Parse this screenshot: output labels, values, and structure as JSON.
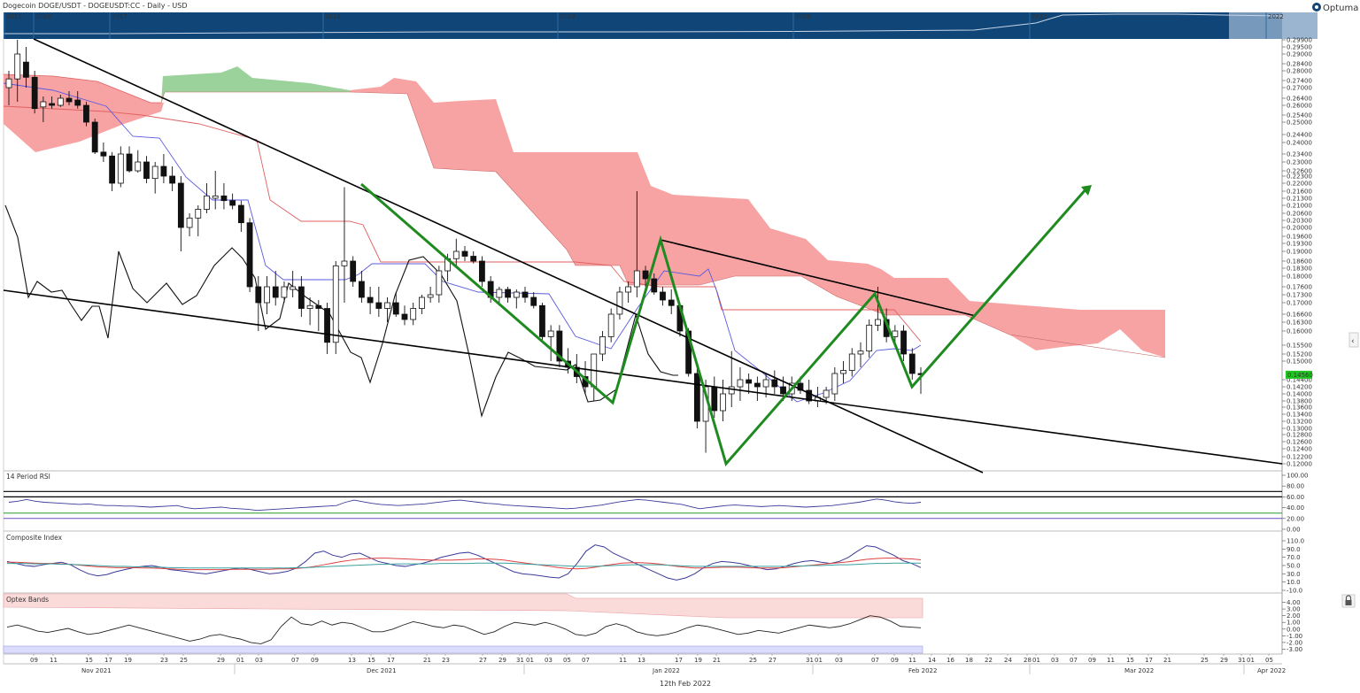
{
  "header": {
    "title": "Dogecoin DOGE/USDT - DOGEUSDT:CC - Daily - USD",
    "brand": "Optuma"
  },
  "navigator": {
    "years": [
      "2015",
      "2016",
      "2017",
      "2018",
      "2019",
      "2020",
      "2021",
      "2022"
    ]
  },
  "footer": {
    "date": "12th Feb 2022"
  },
  "colors": {
    "kumo_bear": "#f7a3a3",
    "kumo_bull": "#9bd29b",
    "pattern": "#1f8a1f",
    "tenkan": "#5a5ae0",
    "kijun": "#e06060",
    "price_badge": "#21c421",
    "navigator": "#0f4577"
  },
  "chart_data": [
    {
      "name": "price",
      "type": "candlestick",
      "price_badge": "0.14560",
      "y_ticks": [
        "0.29900",
        "0.29500",
        "0.29000",
        "0.28400",
        "0.28000",
        "0.27400",
        "0.27000",
        "0.26400",
        "0.26000",
        "0.25400",
        "0.25000",
        "0.24400",
        "0.24000",
        "0.23400",
        "0.23000",
        "0.22600",
        "0.22300",
        "0.22000",
        "0.21600",
        "0.21300",
        "0.21000",
        "0.20600",
        "0.20300",
        "0.20000",
        "0.19600",
        "0.19300",
        "0.19000",
        "0.18600",
        "0.18300",
        "0.18000",
        "0.17600",
        "0.17300",
        "0.17000",
        "0.16600",
        "0.16300",
        "0.16000",
        "0.15500",
        "0.15200",
        "0.15000",
        "0.14400",
        "0.14200",
        "0.14000",
        "0.13800",
        "0.13600",
        "0.13400",
        "0.13200",
        "0.13000",
        "0.12800",
        "0.12600",
        "0.12400",
        "0.12200",
        "0.12000"
      ],
      "ohlc_note": "approximate daily DOGE/USDT candles, Nov 2021 - Feb 12 2022",
      "pattern": "falling wedge with green zig-zag projection"
    },
    {
      "name": "rsi",
      "title": "14 Period RSI",
      "y_ticks": [
        "100.00",
        "80.00",
        "60.00",
        "40.00",
        "20.00",
        "0.00"
      ],
      "levels": [
        70,
        60,
        30,
        20
      ]
    },
    {
      "name": "composite",
      "title": "Composite Index",
      "y_ticks": [
        "110.0",
        "90.0",
        "70.0",
        "50.0",
        "30.0",
        "10.0",
        "-10.0"
      ]
    },
    {
      "name": "optex",
      "title": "Optex Bands",
      "y_ticks": [
        "4.00",
        "3.00",
        "2.00",
        "1.00",
        "0.00",
        "-1.00",
        "-2.00",
        "-3.00"
      ]
    }
  ],
  "x_axis": {
    "day_ticks": [
      "09",
      "11",
      "15",
      "17",
      "19",
      "23",
      "25",
      "29",
      "01",
      "03",
      "07",
      "09",
      "13",
      "15",
      "17",
      "21",
      "23",
      "27",
      "29",
      "31",
      "01",
      "03",
      "05",
      "07",
      "11",
      "13",
      "17",
      "19",
      "21",
      "25",
      "27",
      "31",
      "01",
      "03",
      "07",
      "09",
      "11",
      "14",
      "16",
      "18",
      "22",
      "24",
      "28",
      "01",
      "03",
      "07",
      "09",
      "11",
      "15",
      "17",
      "21",
      "25",
      "29",
      "31",
      "01",
      "05"
    ],
    "months": [
      "Nov 2021",
      "Dec 2021",
      "Jan 2022",
      "Feb 2022",
      "Mar 2022",
      "Apr 2022"
    ]
  }
}
